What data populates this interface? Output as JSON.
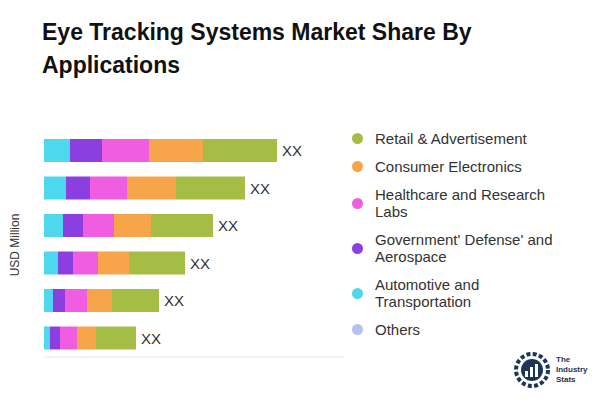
{
  "chart_data": {
    "type": "bar",
    "title": "Eye Tracking Systems Market Share By Applications",
    "ylabel": "USD Million",
    "orientation": "horizontal",
    "stacked": true,
    "grid": false,
    "tick_labels": false,
    "legend": "right",
    "categories": [
      null,
      null,
      null,
      null,
      null,
      null
    ],
    "xlim": [
      0,
      300
    ],
    "xticks": [],
    "series": [
      {
        "name": "Retail & Advertisement",
        "color": "#a5bd45",
        "values": [
          74,
          69,
          62,
          56,
          47,
          40
        ]
      },
      {
        "name": "Consumer Electronics",
        "color": "#f6a54a",
        "values": [
          54,
          49,
          37,
          31,
          25,
          19
        ]
      },
      {
        "name": "Healthcare and Research Labs",
        "color": "#f05de0",
        "values": [
          47,
          37,
          31,
          25,
          22,
          17
        ]
      },
      {
        "name": "Government' Defense' and Aerospace",
        "color": "#8b3fe0",
        "values": [
          32,
          24,
          20,
          15,
          12,
          10
        ]
      },
      {
        "name": "Automotive and Transportation",
        "color": "#4ed8ee",
        "values": [
          26,
          22,
          19,
          14,
          9,
          6
        ]
      },
      {
        "name": "Others",
        "color": "#b5c0f5",
        "values": [
          0,
          0,
          0,
          0,
          0,
          0
        ]
      }
    ],
    "bar_labels": [
      "XX",
      "XX",
      "XX",
      "XX",
      "XX",
      "XX"
    ]
  },
  "source": "The Industry Stats"
}
